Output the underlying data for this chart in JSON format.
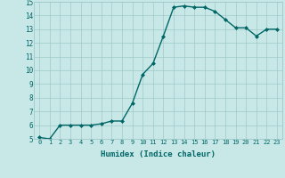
{
  "x": [
    0,
    1,
    2,
    3,
    4,
    5,
    6,
    7,
    8,
    9,
    10,
    11,
    12,
    13,
    14,
    15,
    16,
    17,
    18,
    19,
    20,
    21,
    22,
    23
  ],
  "y": [
    5.1,
    5.0,
    6.0,
    6.0,
    6.0,
    6.0,
    6.1,
    6.3,
    6.3,
    7.6,
    9.7,
    10.5,
    12.5,
    14.6,
    14.7,
    14.6,
    14.6,
    14.3,
    13.7,
    13.1,
    13.1,
    12.5,
    13.0,
    13.0
  ],
  "xlabel": "Humidex (Indice chaleur)",
  "ylim": [
    5,
    15
  ],
  "xlim": [
    -0.5,
    23.5
  ],
  "yticks": [
    5,
    6,
    7,
    8,
    9,
    10,
    11,
    12,
    13,
    14,
    15
  ],
  "xticks": [
    0,
    1,
    2,
    3,
    4,
    5,
    6,
    7,
    8,
    9,
    10,
    11,
    12,
    13,
    14,
    15,
    16,
    17,
    18,
    19,
    20,
    21,
    22,
    23
  ],
  "line_color": "#006666",
  "marker_color": "#006666",
  "bg_color": "#c8e8e8",
  "grid_color": "#a0c8c8",
  "font_color": "#006666",
  "marker": "D",
  "markersize": 2.0,
  "linewidth": 1.0
}
